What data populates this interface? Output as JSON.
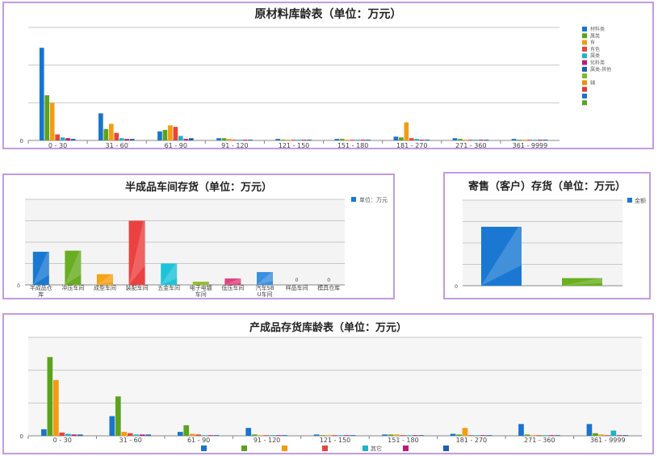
{
  "colors": {
    "palette": [
      "#1874cd",
      "#5aa31e",
      "#f39c12",
      "#e8443a",
      "#19b5c9",
      "#c2187a",
      "#1a60b0",
      "#7db82a",
      "#ef8f0a",
      "#e03b30"
    ],
    "panel_border": "#c39be0",
    "grid": "#c8c8c8"
  },
  "panels": {
    "raw": {
      "title": "原材料库龄表（单位：万元）"
    },
    "wip": {
      "title": "半成品车间存货（单位：万元）"
    },
    "consign": {
      "title": "寄售（客户）存货（单位：万元）"
    },
    "finished": {
      "title": "产成品存货库龄表（单位：万元）"
    }
  },
  "chart_data": [
    {
      "id": "raw",
      "type": "bar",
      "title": "原材料库龄表（单位：万元）",
      "categories": [
        "0 - 30",
        "31 - 60",
        "61 - 90",
        "91 - 120",
        "121 - 150",
        "151 - 180",
        "181 - 270",
        "271 - 360",
        "361 - 9999"
      ],
      "legend_position": "right",
      "legend_entries": [
        "材料类",
        "属类",
        "有",
        "有色",
        "属类",
        "化料类",
        "属类-其他",
        "",
        "辅",
        "",
        "",
        ""
      ],
      "ylim": [
        0,
        150
      ],
      "grid": true,
      "series": [
        {
          "values": [
            123,
            36,
            12,
            3,
            2,
            2,
            5,
            3,
            2
          ]
        },
        {
          "values": [
            60,
            15,
            14,
            3,
            1,
            2,
            4,
            2,
            1
          ]
        },
        {
          "values": [
            50,
            22,
            20,
            2,
            1,
            1,
            24,
            1,
            1
          ]
        },
        {
          "values": [
            8,
            10,
            18,
            1,
            1,
            1,
            3,
            1,
            1
          ]
        },
        {
          "values": [
            4,
            3,
            6,
            1,
            1,
            1,
            2,
            1,
            1
          ]
        },
        {
          "values": [
            3,
            2,
            2,
            1,
            1,
            1,
            1,
            1,
            1
          ]
        },
        {
          "values": [
            2,
            2,
            3,
            1,
            1,
            1,
            1,
            1,
            1
          ]
        }
      ]
    },
    {
      "id": "wip",
      "type": "bar",
      "title": "半成品车间存货（单位：万元）",
      "categories": [
        "半成品仓库",
        "冲压车间",
        "成型车间",
        "装配车间",
        "五金车间",
        "电子电镀车间",
        "低压车间",
        "汽车SBU车间",
        "样品车间",
        "模具仓库"
      ],
      "legend_position": "top-right",
      "ylim": [
        0,
        400
      ],
      "grid": true,
      "series": [
        {
          "name": "单位：万元",
          "values": [
            155,
            160,
            50,
            300,
            100,
            15,
            30,
            60,
            0,
            0
          ]
        }
      ],
      "data_labels": [
        "",
        "",
        "",
        "",
        "",
        "",
        "",
        "",
        "0",
        "0"
      ]
    },
    {
      "id": "consign",
      "type": "bar",
      "title": "寄售（客户）存货（单位：万元）",
      "categories": [
        "",
        ""
      ],
      "legend_position": "top-right",
      "ylim": [
        0,
        450
      ],
      "y_tick_labels": [
        "0"
      ],
      "grid": true,
      "series": [
        {
          "name": "金额",
          "values": [
            310,
            40
          ]
        }
      ]
    },
    {
      "id": "finished",
      "type": "bar",
      "title": "产成品存货库龄表（单位：万元）",
      "categories": [
        "0 - 30",
        "31 - 60",
        "61 - 90",
        "91 - 120",
        "121 - 150",
        "151 - 180",
        "181 - 270",
        "271 - 360",
        "361 - 9999"
      ],
      "legend_position": "bottom",
      "legend_entries": [
        "",
        "",
        "",
        "",
        "其它",
        "",
        ""
      ],
      "ylim": [
        0,
        150
      ],
      "grid": true,
      "series": [
        {
          "values": [
            10,
            30,
            6,
            12,
            2,
            2,
            3,
            18,
            18
          ]
        },
        {
          "values": [
            120,
            60,
            16,
            2,
            1,
            2,
            2,
            2,
            4
          ]
        },
        {
          "values": [
            85,
            6,
            3,
            1,
            1,
            2,
            12,
            1,
            2
          ]
        },
        {
          "values": [
            5,
            4,
            2,
            1,
            1,
            1,
            1,
            1,
            1
          ]
        },
        {
          "values": [
            3,
            2,
            1,
            1,
            1,
            1,
            1,
            1,
            8
          ]
        },
        {
          "values": [
            2,
            2,
            1,
            1,
            1,
            1,
            1,
            1,
            1
          ]
        },
        {
          "values": [
            2,
            2,
            1,
            1,
            1,
            1,
            1,
            1,
            1
          ]
        }
      ]
    }
  ]
}
